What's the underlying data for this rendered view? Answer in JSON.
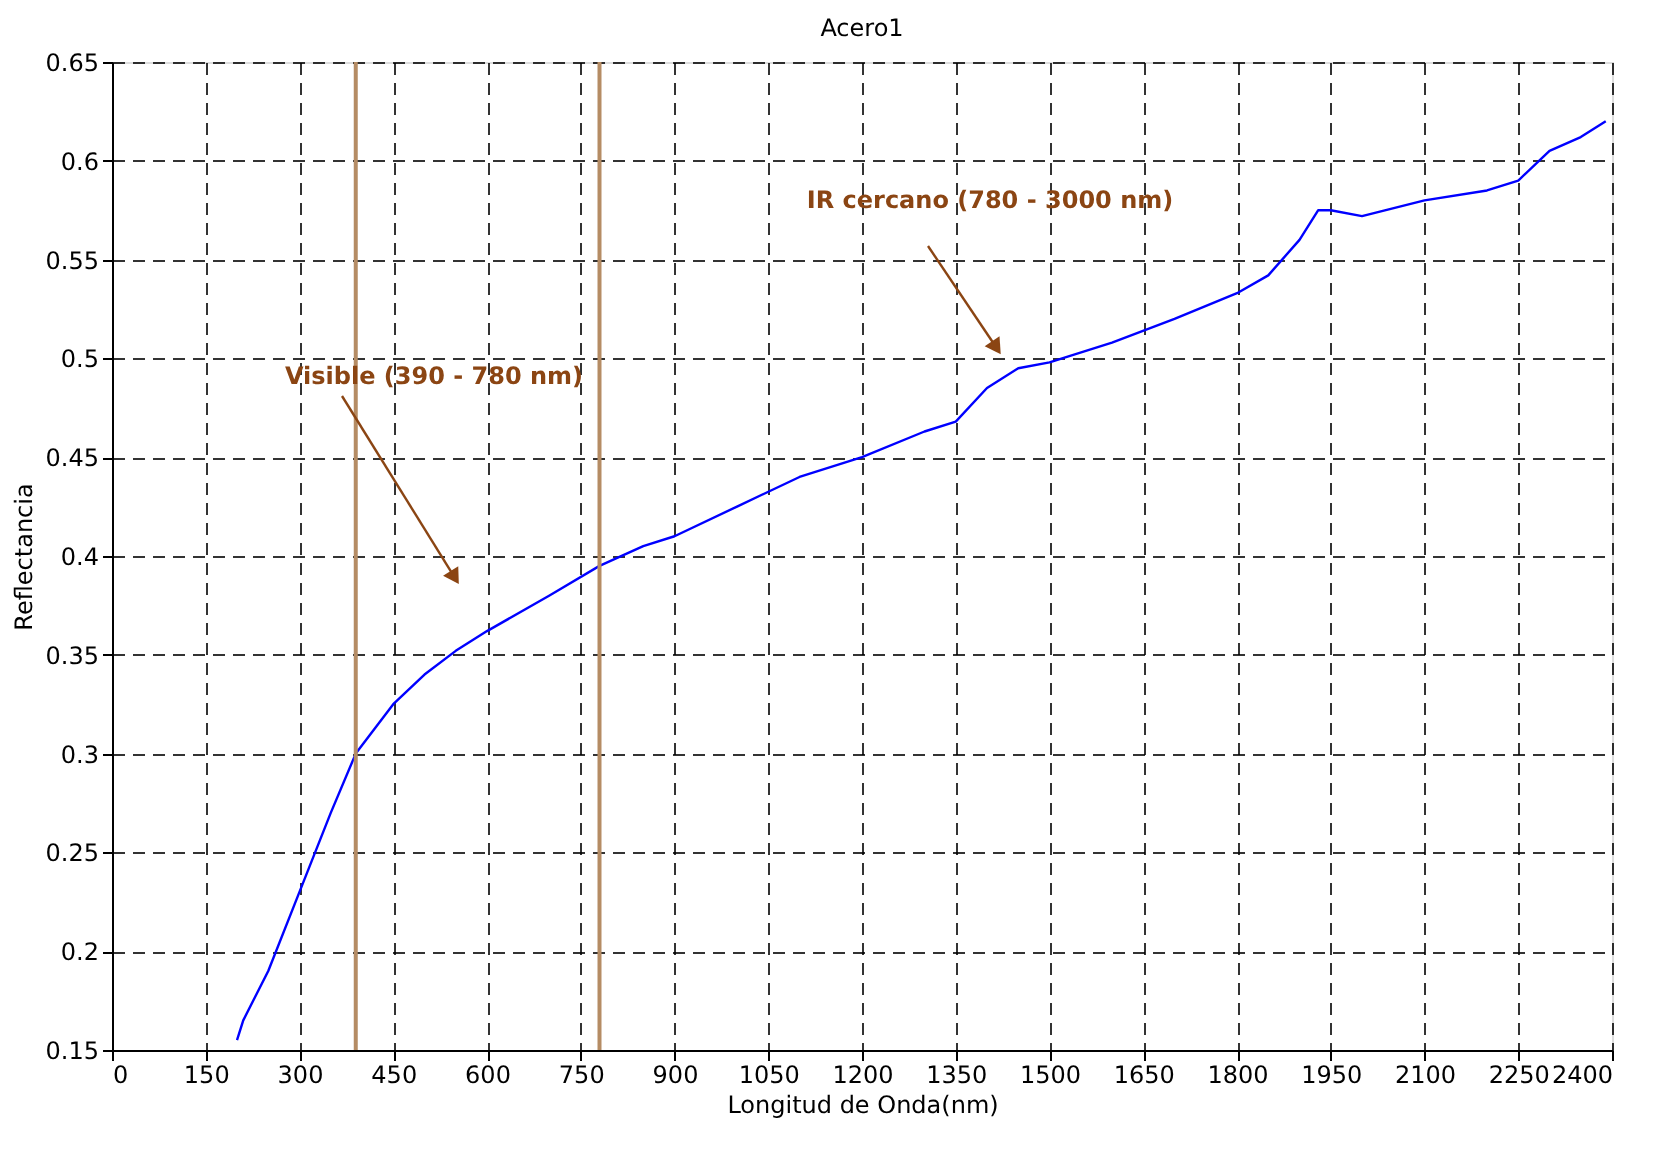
{
  "chart_data": {
    "type": "line",
    "title": "Acero1",
    "xlabel": "Longitud de Onda(nm)",
    "ylabel": "Reflectancia",
    "x": [
      200,
      210,
      250,
      300,
      350,
      390,
      450,
      500,
      550,
      600,
      700,
      780,
      850,
      900,
      1000,
      1100,
      1200,
      1300,
      1350,
      1400,
      1450,
      1500,
      1600,
      1700,
      1800,
      1850,
      1900,
      1930,
      1950,
      2000,
      2100,
      2200,
      2250,
      2300,
      2350,
      2390
    ],
    "series": [
      {
        "color": "#0000ff",
        "values": [
          0.155,
          0.165,
          0.19,
          0.23,
          0.27,
          0.3,
          0.325,
          0.34,
          0.352,
          0.362,
          0.38,
          0.395,
          0.405,
          0.41,
          0.425,
          0.44,
          0.45,
          0.463,
          0.468,
          0.485,
          0.495,
          0.498,
          0.508,
          0.52,
          0.533,
          0.542,
          0.56,
          0.575,
          0.575,
          0.572,
          0.58,
          0.585,
          0.59,
          0.605,
          0.612,
          0.62
        ]
      }
    ],
    "xlim": [
      0,
      2400
    ],
    "xticks": [
      0,
      150,
      300,
      450,
      600,
      750,
      900,
      1050,
      1200,
      1350,
      1500,
      1650,
      1800,
      1950,
      2100,
      2250,
      2400
    ],
    "ylim": [
      0.15,
      0.65
    ],
    "yticks": [
      0.15,
      0.2,
      0.25,
      0.3,
      0.35,
      0.4,
      0.45,
      0.5,
      0.55,
      0.6,
      0.65
    ],
    "grid": true,
    "ref_lines": [
      {
        "axis": "x",
        "value": 390,
        "color": "#b58c64"
      },
      {
        "axis": "x",
        "value": 780,
        "color": "#b58c64"
      }
    ],
    "annotations": [
      "Visible (390 - 780 nm)",
      "IR cercano (780 - 3000 nm)"
    ]
  }
}
